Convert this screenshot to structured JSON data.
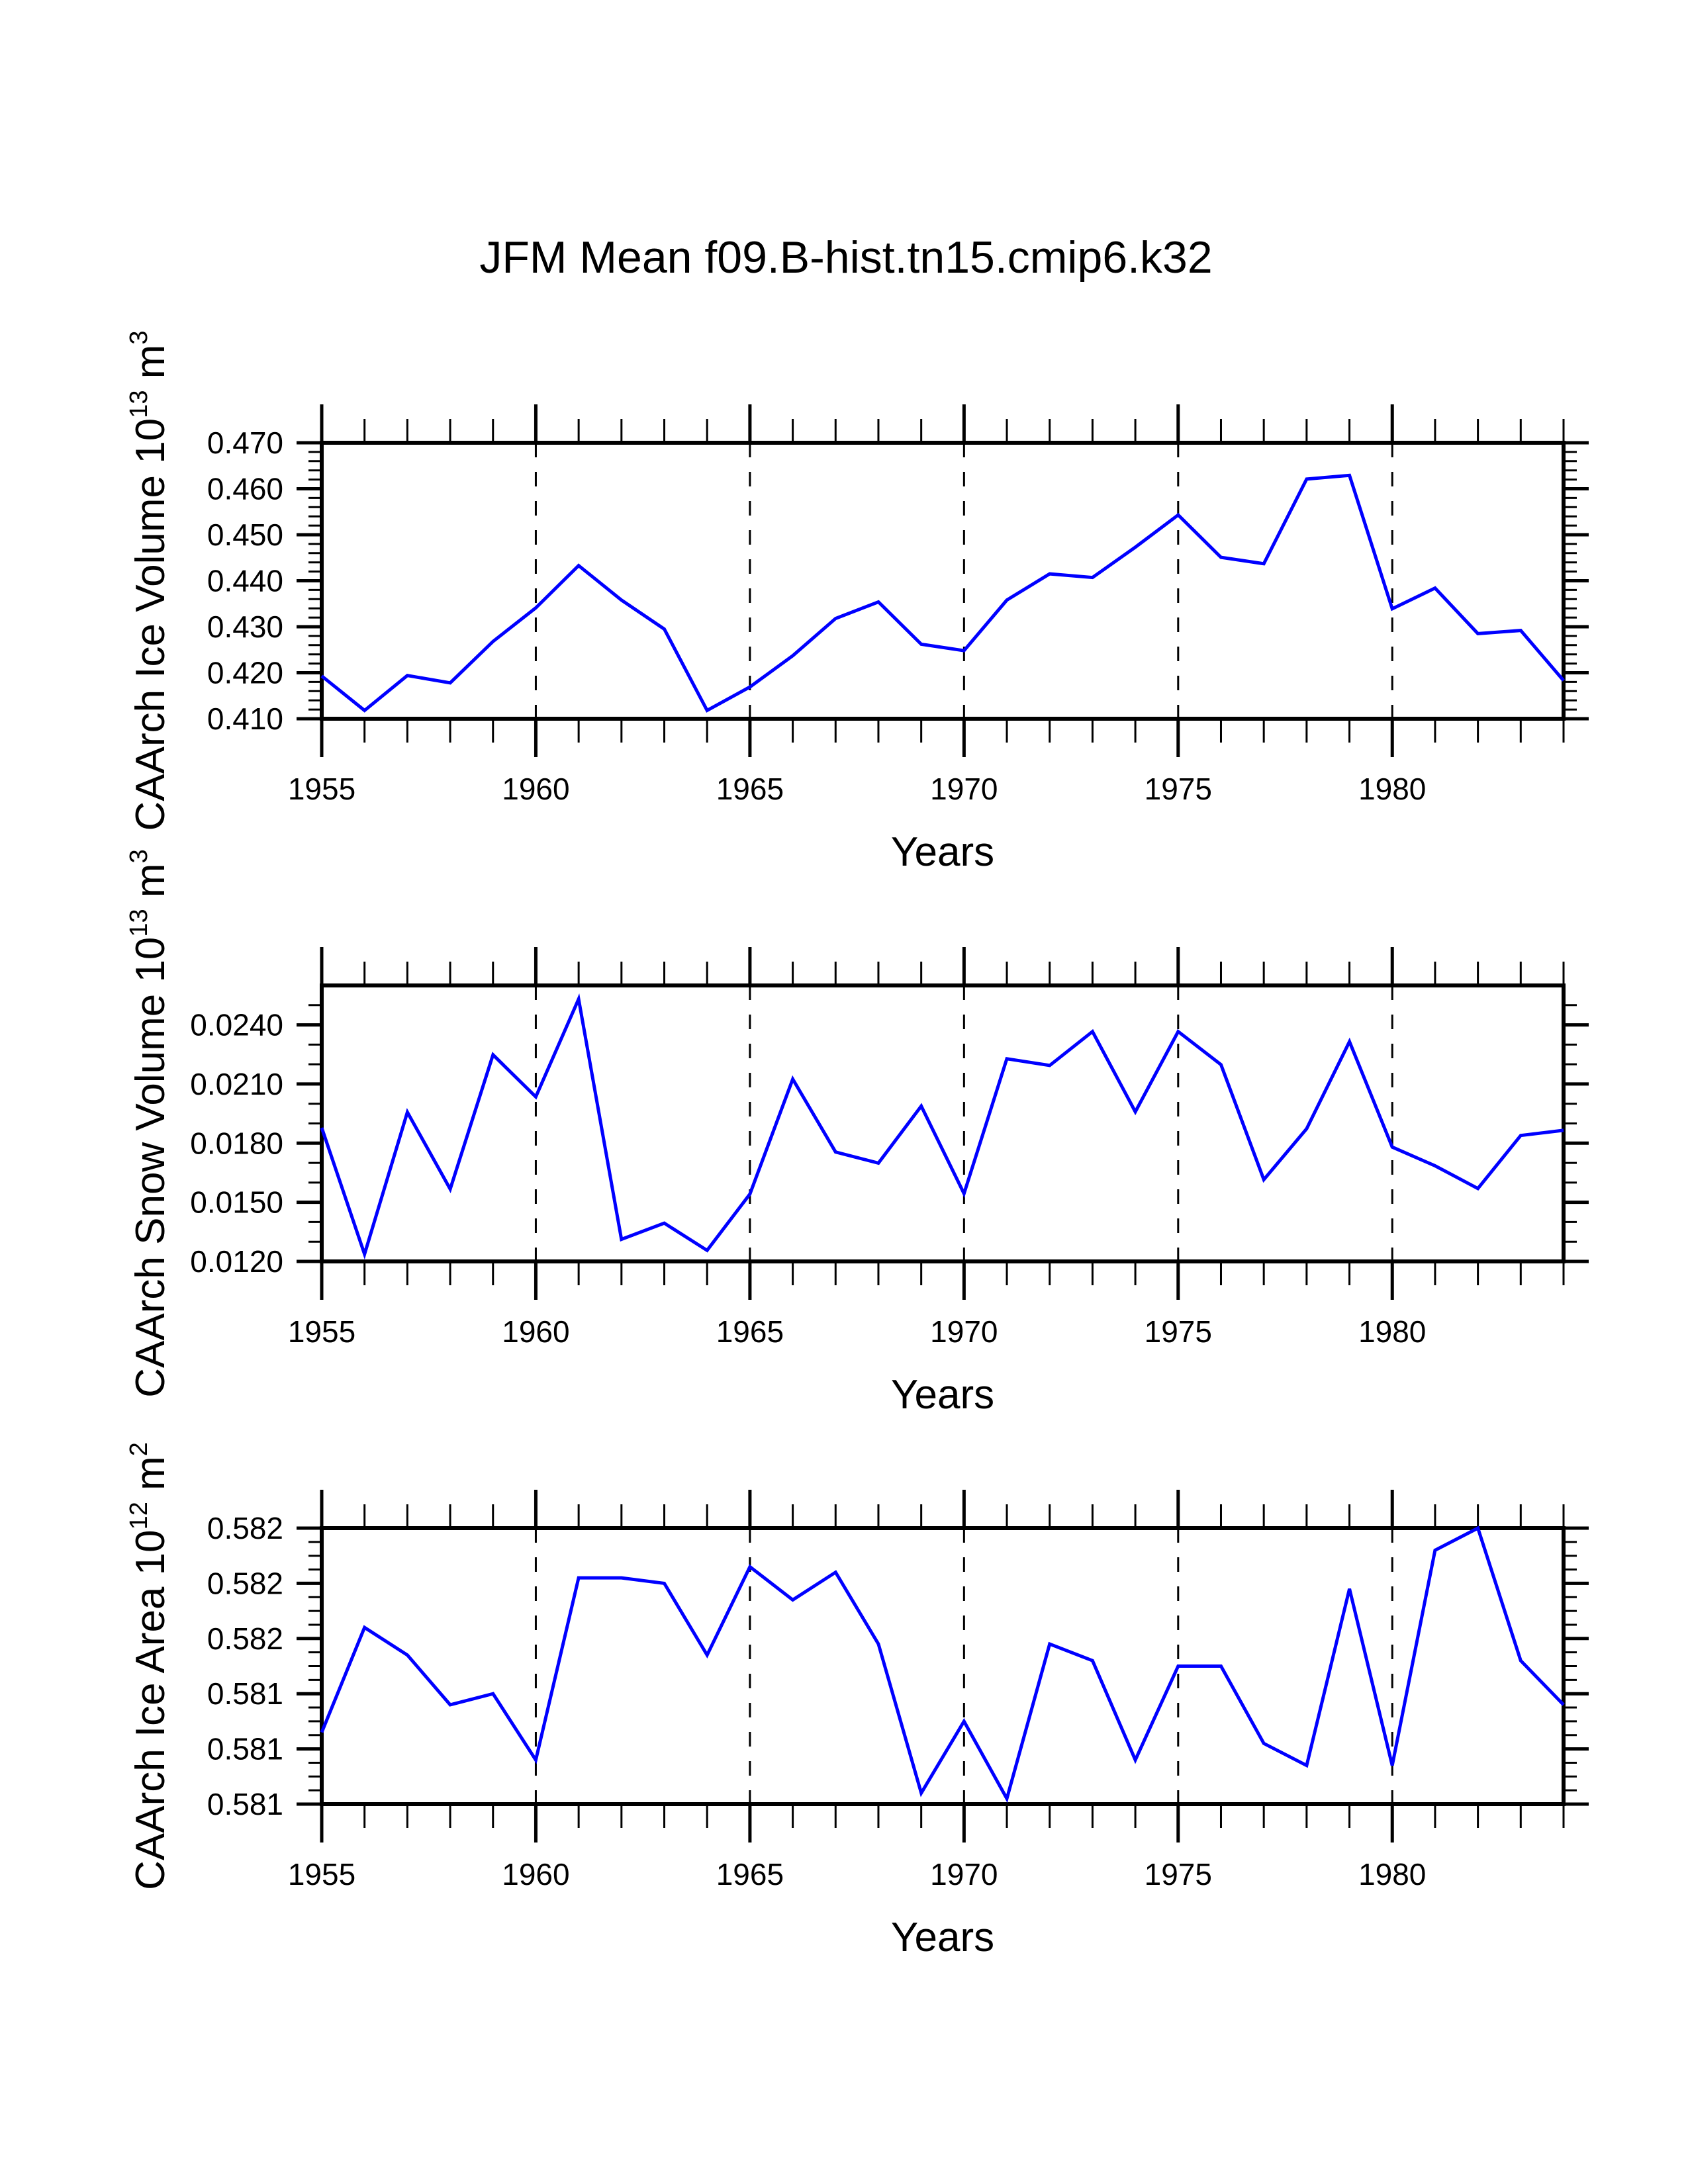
{
  "chart_data": {
    "title": "JFM Mean f09.B-hist.tn15.cmip6.k32",
    "type": "line",
    "line_color": "#0000ff",
    "panels": [
      {
        "type": "line",
        "ylabel": "CAArch Ice Volume 10",
        "ylabel_exponent": "13",
        "ylabel_units": " m",
        "ylabel_units_exponent": "3",
        "xlabel": "Years",
        "xlim": [
          1955,
          1984
        ],
        "ylim": [
          0.41,
          0.47
        ],
        "x_ticks": [
          1955,
          1960,
          1965,
          1970,
          1975,
          1980
        ],
        "x_tick_labels": [
          "1955",
          "1960",
          "1965",
          "1970",
          "1975",
          "1980"
        ],
        "y_ticks": [
          0.41,
          0.42,
          0.43,
          0.44,
          0.45,
          0.46,
          0.47
        ],
        "y_tick_labels": [
          "0.410",
          "0.420",
          "0.430",
          "0.440",
          "0.450",
          "0.460",
          "0.470"
        ],
        "y_minor_per_major": 5,
        "grid": "vertical dashed at major x ticks",
        "x": [
          1955,
          1956,
          1957,
          1958,
          1959,
          1960,
          1961,
          1962,
          1963,
          1964,
          1965,
          1966,
          1967,
          1968,
          1969,
          1970,
          1971,
          1972,
          1973,
          1974,
          1975,
          1976,
          1977,
          1978,
          1979,
          1980,
          1981,
          1982,
          1983,
          1984
        ],
        "values": [
          0.4193,
          0.4118,
          0.4194,
          0.4178,
          0.4268,
          0.4341,
          0.4433,
          0.4358,
          0.4295,
          0.4118,
          0.4169,
          0.4237,
          0.4318,
          0.4354,
          0.4262,
          0.4248,
          0.4358,
          0.4415,
          0.4407,
          0.4473,
          0.4543,
          0.4451,
          0.4437,
          0.4621,
          0.4629,
          0.4339,
          0.4384,
          0.4285,
          0.4292,
          0.4183
        ]
      },
      {
        "type": "line",
        "ylabel": "CAArch Snow Volume 10",
        "ylabel_exponent": "13",
        "ylabel_units": " m",
        "ylabel_units_exponent": "3",
        "xlabel": "Years",
        "xlim": [
          1955,
          1984
        ],
        "ylim": [
          0.012,
          0.026
        ],
        "x_ticks": [
          1955,
          1960,
          1965,
          1970,
          1975,
          1980
        ],
        "x_tick_labels": [
          "1955",
          "1960",
          "1965",
          "1970",
          "1975",
          "1980"
        ],
        "y_ticks": [
          0.012,
          0.015,
          0.018,
          0.021,
          0.024
        ],
        "y_tick_labels": [
          "0.0120",
          "0.0150",
          "0.0180",
          "0.0210",
          "0.0240"
        ],
        "y_minor_per_major": 3,
        "grid": "vertical dashed at major x ticks",
        "x": [
          1955,
          1956,
          1957,
          1958,
          1959,
          1960,
          1961,
          1962,
          1963,
          1964,
          1965,
          1966,
          1967,
          1968,
          1969,
          1970,
          1971,
          1972,
          1973,
          1974,
          1975,
          1976,
          1977,
          1978,
          1979,
          1980,
          1981,
          1982,
          1983,
          1984
        ],
        "values": [
          0.01878,
          0.01237,
          0.01957,
          0.01567,
          0.02248,
          0.02035,
          0.02531,
          0.01312,
          0.01394,
          0.01256,
          0.01542,
          0.02125,
          0.01755,
          0.01699,
          0.01988,
          0.01544,
          0.02228,
          0.02194,
          0.02366,
          0.01959,
          0.02366,
          0.02198,
          0.01615,
          0.01873,
          0.02315,
          0.0178,
          0.01685,
          0.0157,
          0.01839,
          0.01865
        ]
      },
      {
        "type": "line",
        "ylabel": "CAArch Ice Area 10",
        "ylabel_exponent": "12",
        "ylabel_units": " m",
        "ylabel_units_exponent": "2",
        "xlabel": "Years",
        "xlim": [
          1955,
          1984
        ],
        "ylim": [
          0.5812,
          0.5817
        ],
        "x_ticks": [
          1955,
          1960,
          1965,
          1970,
          1975,
          1980
        ],
        "x_tick_labels": [
          "1955",
          "1960",
          "1965",
          "1970",
          "1975",
          "1980"
        ],
        "y_ticks": [
          0.5812,
          0.5813,
          0.5814,
          0.5815,
          0.5816,
          0.5817
        ],
        "y_tick_labels": [
          "0.581",
          "0.581",
          "0.581",
          "0.582",
          "0.582",
          "0.582"
        ],
        "y_minor_per_major": 4,
        "grid": "vertical dashed at major x ticks",
        "x": [
          1955,
          1956,
          1957,
          1958,
          1959,
          1960,
          1961,
          1962,
          1963,
          1964,
          1965,
          1966,
          1967,
          1968,
          1969,
          1970,
          1971,
          1972,
          1973,
          1974,
          1975,
          1976,
          1977,
          1978,
          1979,
          1980,
          1981,
          1982,
          1983,
          1984
        ],
        "values": [
          0.58133,
          0.58152,
          0.58147,
          0.58138,
          0.5814,
          0.58128,
          0.58161,
          0.58161,
          0.5816,
          0.58147,
          0.58163,
          0.58157,
          0.58162,
          0.58149,
          0.58122,
          0.58135,
          0.58121,
          0.58149,
          0.58146,
          0.58128,
          0.58145,
          0.58145,
          0.58131,
          0.58127,
          0.58159,
          0.58127,
          0.58166,
          0.5817,
          0.58146,
          0.58138
        ]
      }
    ]
  }
}
